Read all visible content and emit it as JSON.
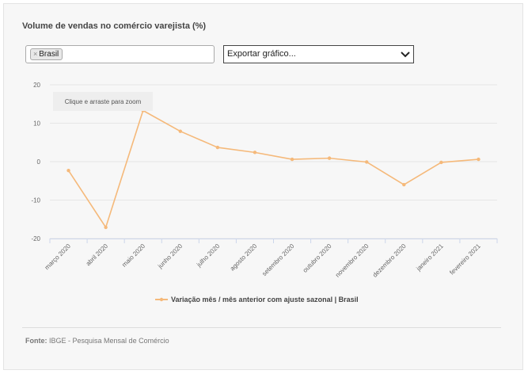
{
  "title": "Volume de vendas no comércio varejista (%)",
  "filter": {
    "selected_tag": "Brasil",
    "remove_symbol": "×"
  },
  "export": {
    "label": "Exportar gráfico..."
  },
  "zoom_hint": "Clique e arraste para zoom",
  "source": {
    "label": "Fonte:",
    "text": "IBGE - Pesquisa Mensal de Comércio"
  },
  "colors": {
    "series": "#f5b97a",
    "grid": "#e6e6e6",
    "axis": "#ccd6eb"
  },
  "chart_data": {
    "type": "line",
    "title": "Volume de vendas no comércio varejista (%)",
    "xlabel": "",
    "ylabel": "",
    "ylim": [
      -20,
      20
    ],
    "yticks": [
      20,
      10,
      0,
      -10,
      -20
    ],
    "grid": true,
    "legend": "bottom",
    "categories": [
      "março 2020",
      "abril 2020",
      "maio 2020",
      "junho 2020",
      "julho 2020",
      "agosto 2020",
      "setembro 2020",
      "outubro 2020",
      "novembro 2020",
      "dezembro 2020",
      "janeiro 2021",
      "fevereiro 2021"
    ],
    "series": [
      {
        "name": "Variação mês / mês anterior com ajuste sazonal | Brasil",
        "values": [
          -2.3,
          -17.1,
          13.3,
          7.9,
          3.7,
          2.4,
          0.6,
          0.9,
          -0.1,
          -6.0,
          -0.2,
          0.6
        ]
      }
    ]
  }
}
